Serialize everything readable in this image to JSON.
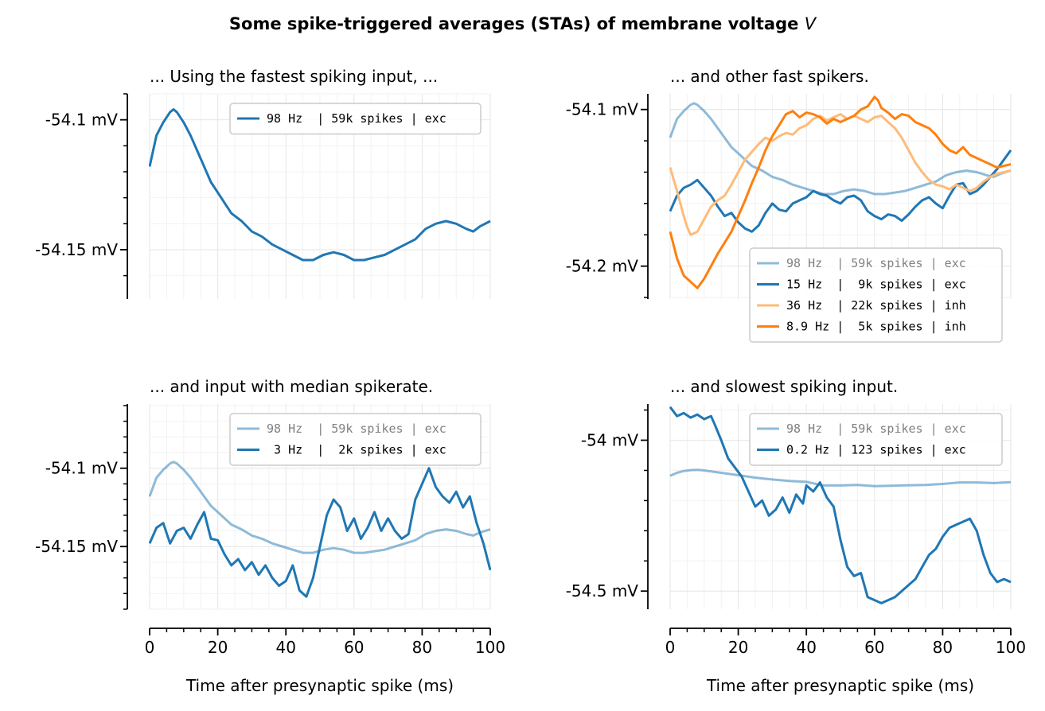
{
  "figure": {
    "suptitle": "Some spike-triggered averages (STAs) of membrane voltage",
    "suptitle_var": "V"
  },
  "chart_data": [
    {
      "type": "line",
      "title": "... Using the fastest spiking input, ...",
      "xlabel": "",
      "ylabel": "",
      "xlim": [
        0,
        100
      ],
      "ylim": [
        -54.169,
        -54.09
      ],
      "xticks": [],
      "yticks": [
        {
          "value": -54.1,
          "label": "-54.1 mV"
        },
        {
          "value": -54.15,
          "label": "-54.15 mV"
        }
      ],
      "grid": true,
      "legend_position": "top-right",
      "series": [
        {
          "name": "98 Hz  | 59k spikes | exc",
          "color": "#1f77b4",
          "alpha": 1.0,
          "x": [
            0,
            2,
            4,
            6,
            7,
            8,
            10,
            12,
            15,
            18,
            21,
            24,
            27,
            30,
            33,
            36,
            39,
            42,
            45,
            48,
            51,
            54,
            57,
            60,
            63,
            66,
            69,
            72,
            75,
            78,
            81,
            84,
            87,
            90,
            93,
            95,
            97,
            100
          ],
          "y": [
            -54.118,
            -54.106,
            -54.101,
            -54.097,
            -54.096,
            -54.097,
            -54.101,
            -54.106,
            -54.115,
            -54.124,
            -54.13,
            -54.136,
            -54.139,
            -54.143,
            -54.145,
            -54.148,
            -54.15,
            -54.152,
            -54.154,
            -54.154,
            -54.152,
            -54.151,
            -54.152,
            -54.154,
            -54.154,
            -54.153,
            -54.152,
            -54.15,
            -54.148,
            -54.146,
            -54.142,
            -54.14,
            -54.139,
            -54.14,
            -54.142,
            -54.143,
            -54.141,
            -54.139
          ]
        }
      ]
    },
    {
      "type": "line",
      "title": "... and other fast spikers.",
      "xlabel": "",
      "ylabel": "",
      "xlim": [
        0,
        100
      ],
      "ylim": [
        -54.221,
        -54.09
      ],
      "xticks": [],
      "yticks": [
        {
          "value": -54.1,
          "label": "-54.1 mV"
        },
        {
          "value": -54.2,
          "label": "-54.2 mV"
        }
      ],
      "grid": true,
      "legend_position": "lower-right",
      "series": [
        {
          "name": "98 Hz  | 59k spikes | exc",
          "color": "#1f77b4",
          "alpha": 0.5,
          "x": [
            0,
            2,
            4,
            6,
            7,
            8,
            10,
            12,
            15,
            18,
            21,
            24,
            27,
            30,
            33,
            36,
            39,
            42,
            45,
            48,
            51,
            54,
            57,
            60,
            63,
            66,
            69,
            72,
            75,
            78,
            81,
            84,
            87,
            90,
            93,
            95,
            97,
            100
          ],
          "y": [
            -54.118,
            -54.106,
            -54.101,
            -54.097,
            -54.096,
            -54.097,
            -54.101,
            -54.106,
            -54.115,
            -54.124,
            -54.13,
            -54.136,
            -54.139,
            -54.143,
            -54.145,
            -54.148,
            -54.15,
            -54.152,
            -54.154,
            -54.154,
            -54.152,
            -54.151,
            -54.152,
            -54.154,
            -54.154,
            -54.153,
            -54.152,
            -54.15,
            -54.148,
            -54.146,
            -54.142,
            -54.14,
            -54.139,
            -54.14,
            -54.142,
            -54.143,
            -54.141,
            -54.139
          ]
        },
        {
          "name": "15 Hz  |  9k spikes | exc",
          "color": "#1f77b4",
          "alpha": 1.0,
          "x": [
            0,
            2,
            4,
            6,
            8,
            10,
            12,
            14,
            16,
            18,
            20,
            22,
            24,
            26,
            28,
            30,
            32,
            34,
            36,
            38,
            40,
            42,
            44,
            46,
            48,
            50,
            52,
            54,
            56,
            58,
            60,
            62,
            64,
            66,
            68,
            70,
            72,
            74,
            76,
            78,
            80,
            82,
            84,
            86,
            88,
            90,
            92,
            94,
            96,
            98,
            100
          ],
          "y": [
            -54.165,
            -54.155,
            -54.15,
            -54.148,
            -54.145,
            -54.15,
            -54.155,
            -54.162,
            -54.168,
            -54.166,
            -54.172,
            -54.176,
            -54.178,
            -54.174,
            -54.166,
            -54.16,
            -54.164,
            -54.165,
            -54.16,
            -54.158,
            -54.156,
            -54.152,
            -54.154,
            -54.155,
            -54.158,
            -54.16,
            -54.156,
            -54.155,
            -54.158,
            -54.165,
            -54.168,
            -54.17,
            -54.167,
            -54.168,
            -54.171,
            -54.167,
            -54.162,
            -54.158,
            -54.156,
            -54.16,
            -54.163,
            -54.155,
            -54.148,
            -54.147,
            -54.154,
            -54.152,
            -54.148,
            -54.143,
            -54.138,
            -54.132,
            -54.126
          ]
        },
        {
          "name": "36 Hz  | 22k spikes | inh",
          "color": "#ffbb78",
          "alpha": 1.0,
          "x": [
            0,
            2,
            4,
            5,
            6,
            8,
            10,
            12,
            14,
            16,
            18,
            20,
            22,
            24,
            26,
            28,
            30,
            32,
            34,
            36,
            38,
            40,
            42,
            44,
            46,
            48,
            50,
            52,
            54,
            56,
            58,
            60,
            62,
            64,
            66,
            68,
            70,
            72,
            74,
            76,
            78,
            80,
            82,
            84,
            86,
            88,
            90,
            92,
            94,
            96,
            98,
            100
          ],
          "y": [
            -54.137,
            -54.152,
            -54.168,
            -54.175,
            -54.18,
            -54.178,
            -54.17,
            -54.162,
            -54.158,
            -54.155,
            -54.148,
            -54.14,
            -54.132,
            -54.127,
            -54.122,
            -54.118,
            -54.12,
            -54.117,
            -54.115,
            -54.116,
            -54.112,
            -54.11,
            -54.106,
            -54.104,
            -54.107,
            -54.105,
            -54.103,
            -54.106,
            -54.104,
            -54.106,
            -54.108,
            -54.105,
            -54.104,
            -54.108,
            -54.112,
            -54.118,
            -54.126,
            -54.134,
            -54.14,
            -54.145,
            -54.148,
            -54.149,
            -54.151,
            -54.148,
            -54.15,
            -54.152,
            -54.15,
            -54.146,
            -54.143,
            -54.141,
            -54.14,
            -54.139
          ]
        },
        {
          "name": "8.9 Hz |  5k spikes | inh",
          "color": "#ff7f0e",
          "alpha": 1.0,
          "x": [
            0,
            2,
            4,
            6,
            8,
            10,
            12,
            14,
            16,
            18,
            20,
            22,
            24,
            26,
            28,
            30,
            32,
            34,
            36,
            38,
            40,
            42,
            44,
            46,
            48,
            50,
            52,
            54,
            56,
            58,
            60,
            61,
            62,
            64,
            66,
            68,
            70,
            72,
            74,
            76,
            78,
            80,
            82,
            84,
            86,
            88,
            90,
            92,
            94,
            96,
            98,
            100
          ],
          "y": [
            -54.178,
            -54.195,
            -54.206,
            -54.21,
            -54.214,
            -54.208,
            -54.2,
            -54.192,
            -54.185,
            -54.178,
            -54.168,
            -54.158,
            -54.147,
            -54.137,
            -54.126,
            -54.117,
            -54.11,
            -54.103,
            -54.101,
            -54.105,
            -54.102,
            -54.103,
            -54.105,
            -54.109,
            -54.106,
            -54.108,
            -54.106,
            -54.104,
            -54.1,
            -54.098,
            -54.092,
            -54.094,
            -54.099,
            -54.102,
            -54.106,
            -54.103,
            -54.104,
            -54.108,
            -54.11,
            -54.112,
            -54.116,
            -54.122,
            -54.126,
            -54.128,
            -54.124,
            -54.129,
            -54.131,
            -54.133,
            -54.135,
            -54.137,
            -54.136,
            -54.135
          ]
        }
      ]
    },
    {
      "type": "line",
      "title": "... and input with median spikerate.",
      "xlabel": "Time after presynaptic spike (ms)",
      "ylabel": "",
      "xlim": [
        0,
        100
      ],
      "ylim": [
        -54.19,
        -54.059
      ],
      "xticks": [
        0,
        20,
        40,
        60,
        80,
        100
      ],
      "yticks": [
        {
          "value": -54.1,
          "label": "-54.1 mV"
        },
        {
          "value": -54.15,
          "label": "-54.15 mV"
        }
      ],
      "grid": true,
      "legend_position": "top-right",
      "series": [
        {
          "name": "98 Hz  | 59k spikes | exc",
          "color": "#1f77b4",
          "alpha": 0.5,
          "x": [
            0,
            2,
            4,
            6,
            7,
            8,
            10,
            12,
            15,
            18,
            21,
            24,
            27,
            30,
            33,
            36,
            39,
            42,
            45,
            48,
            51,
            54,
            57,
            60,
            63,
            66,
            69,
            72,
            75,
            78,
            81,
            84,
            87,
            90,
            93,
            95,
            97,
            100
          ],
          "y": [
            -54.118,
            -54.106,
            -54.101,
            -54.097,
            -54.096,
            -54.097,
            -54.101,
            -54.106,
            -54.115,
            -54.124,
            -54.13,
            -54.136,
            -54.139,
            -54.143,
            -54.145,
            -54.148,
            -54.15,
            -54.152,
            -54.154,
            -54.154,
            -54.152,
            -54.151,
            -54.152,
            -54.154,
            -54.154,
            -54.153,
            -54.152,
            -54.15,
            -54.148,
            -54.146,
            -54.142,
            -54.14,
            -54.139,
            -54.14,
            -54.142,
            -54.143,
            -54.141,
            -54.139
          ]
        },
        {
          "name": " 3 Hz  |  2k spikes | exc",
          "color": "#1f77b4",
          "alpha": 1.0,
          "x": [
            0,
            2,
            4,
            6,
            8,
            10,
            12,
            14,
            16,
            18,
            20,
            22,
            24,
            26,
            28,
            30,
            32,
            34,
            36,
            38,
            40,
            42,
            44,
            46,
            48,
            50,
            52,
            54,
            56,
            58,
            60,
            62,
            64,
            66,
            68,
            70,
            72,
            74,
            76,
            78,
            80,
            82,
            84,
            86,
            88,
            90,
            92,
            94,
            96,
            98,
            100
          ],
          "y": [
            -54.148,
            -54.138,
            -54.135,
            -54.148,
            -54.14,
            -54.138,
            -54.145,
            -54.136,
            -54.128,
            -54.145,
            -54.146,
            -54.155,
            -54.162,
            -54.158,
            -54.165,
            -54.16,
            -54.168,
            -54.162,
            -54.17,
            -54.175,
            -54.172,
            -54.162,
            -54.178,
            -54.182,
            -54.17,
            -54.15,
            -54.13,
            -54.12,
            -54.125,
            -54.14,
            -54.132,
            -54.145,
            -54.138,
            -54.128,
            -54.14,
            -54.132,
            -54.14,
            -54.145,
            -54.142,
            -54.12,
            -54.11,
            -54.1,
            -54.112,
            -54.118,
            -54.122,
            -54.115,
            -54.125,
            -54.118,
            -54.135,
            -54.148,
            -54.165
          ]
        }
      ]
    },
    {
      "type": "line",
      "title": "... and slowest spiking input.",
      "xlabel": "Time after presynaptic spike (ms)",
      "ylabel": "",
      "xlim": [
        0,
        100
      ],
      "ylim": [
        -54.56,
        -53.88
      ],
      "xticks": [
        0,
        20,
        40,
        60,
        80,
        100
      ],
      "yticks": [
        {
          "value": -54.0,
          "label": "-54 mV"
        },
        {
          "value": -54.5,
          "label": "-54.5 mV"
        }
      ],
      "grid": true,
      "legend_position": "top-right",
      "series": [
        {
          "name": "98 Hz  | 59k spikes | exc",
          "color": "#1f77b4",
          "alpha": 0.5,
          "x": [
            0,
            2,
            4,
            6,
            8,
            10,
            15,
            20,
            25,
            30,
            35,
            40,
            45,
            50,
            55,
            60,
            65,
            70,
            75,
            80,
            85,
            90,
            95,
            100
          ],
          "y": [
            -54.118,
            -54.108,
            -54.102,
            -54.099,
            -54.098,
            -54.1,
            -54.108,
            -54.116,
            -54.124,
            -54.13,
            -54.135,
            -54.138,
            -54.15,
            -54.15,
            -54.148,
            -54.152,
            -54.151,
            -54.149,
            -54.148,
            -54.145,
            -54.14,
            -54.14,
            -54.142,
            -54.139
          ]
        },
        {
          "name": "0.2 Hz | 123 spikes | exc",
          "color": "#1f77b4",
          "alpha": 1.0,
          "x": [
            0,
            2,
            4,
            6,
            8,
            10,
            12,
            13,
            15,
            17,
            19,
            21,
            23,
            25,
            27,
            29,
            31,
            33,
            35,
            37,
            39,
            40,
            42,
            44,
            46,
            48,
            50,
            52,
            54,
            56,
            58,
            60,
            62,
            64,
            66,
            68,
            70,
            72,
            74,
            76,
            78,
            80,
            82,
            84,
            86,
            88,
            90,
            92,
            94,
            96,
            98,
            100
          ],
          "y": [
            -53.89,
            -53.92,
            -53.91,
            -53.925,
            -53.915,
            -53.93,
            -53.92,
            -53.945,
            -54.0,
            -54.06,
            -54.09,
            -54.12,
            -54.17,
            -54.22,
            -54.2,
            -54.25,
            -54.23,
            -54.19,
            -54.24,
            -54.18,
            -54.21,
            -54.15,
            -54.17,
            -54.14,
            -54.19,
            -54.22,
            -54.33,
            -54.42,
            -54.45,
            -54.44,
            -54.52,
            -54.53,
            -54.54,
            -54.53,
            -54.52,
            -54.5,
            -54.48,
            -54.46,
            -54.42,
            -54.38,
            -54.36,
            -54.32,
            -54.29,
            -54.28,
            -54.27,
            -54.26,
            -54.3,
            -54.38,
            -54.44,
            -54.47,
            -54.46,
            -54.47
          ]
        }
      ]
    }
  ]
}
